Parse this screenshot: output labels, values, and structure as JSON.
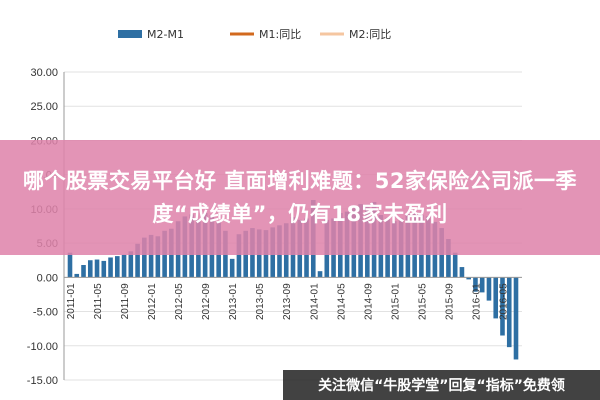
{
  "colors": {
    "m2_m1": "#2e6fa3",
    "m1_yoy": "#d2691e",
    "m2_yoy": "#f5c6a0",
    "banner_bg": "#de82aa",
    "footer_bg": "#282828"
  },
  "chart_data": {
    "type": "bar",
    "title": "",
    "xlabel": "",
    "ylabel": "",
    "ylim": [
      -15,
      30
    ],
    "yticks": [
      "30.00",
      "25.00",
      "20.00",
      "15.00",
      "10.00",
      "5.00",
      "0.00",
      "-5.00",
      "-10.00",
      "-15.00"
    ],
    "ytick_values": [
      30,
      25,
      20,
      15,
      10,
      5,
      0,
      -5,
      -10,
      -15
    ],
    "xtick_labels": [
      "2011-01",
      "2011-05",
      "2011-09",
      "2012-01",
      "2012-05",
      "2012-09",
      "2013-01",
      "2013-05",
      "2013-09",
      "2014-01",
      "2014-05",
      "2014-09",
      "2015-01",
      "2015-05",
      "2015-09",
      "2016-01",
      "2016-05"
    ],
    "legend_position": "top",
    "series": [
      {
        "name": "M2-M1",
        "type": "bar",
        "color": "#2e6fa3",
        "values": [
          3.6,
          0.5,
          1.8,
          2.5,
          2.6,
          2.4,
          2.9,
          3.1,
          3.3,
          3.8,
          4.9,
          5.8,
          6.2,
          6.0,
          6.8,
          7.1,
          8.2,
          8.9,
          9.2,
          8.5,
          9.4,
          9.1,
          8.2,
          6.8,
          2.7,
          6.3,
          6.8,
          7.2,
          7.0,
          6.9,
          7.3,
          7.6,
          7.9,
          8.8,
          8.4,
          8.6,
          11.3,
          0.9,
          8.4,
          8.6,
          9.4,
          9.6,
          10.1,
          10.7,
          10.6,
          11.0,
          9.1,
          8.7,
          8.2,
          8.6,
          9.3,
          9.4,
          9.1,
          8.9,
          8.1,
          7.2,
          5.6,
          3.6,
          1.5,
          -0.3,
          -2.1,
          -2.2,
          -3.4,
          -6.0,
          -8.5,
          -10.2,
          -12.0
        ]
      }
    ],
    "legend_only_series": [
      "M1:同比",
      "M2:同比"
    ]
  },
  "legend": {
    "items": [
      {
        "label": "M2-M1",
        "color": "#2e6fa3"
      },
      {
        "label": "M1:同比",
        "color": "#d2691e"
      },
      {
        "label": "M2:同比",
        "color": "#f5c6a0"
      }
    ]
  },
  "banner": {
    "title": "哪个股票交易平台好 直面增利难题：52家保险公司派一季度“成绩单”，仍有18家未盈利"
  },
  "footer": {
    "text": "关注微信“牛股学堂”回复“指标”免费领"
  }
}
